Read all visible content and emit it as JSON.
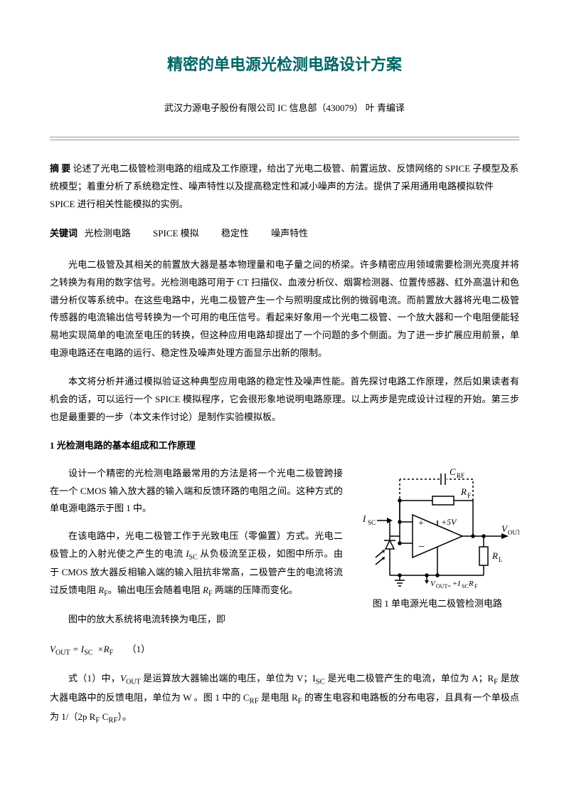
{
  "title": "精密的单电源光检测电路设计方案",
  "author": "武汉力源电子股份有限公司 IC 信息部（430079）  叶 青编译",
  "abstract_label": "摘 要",
  "abstract_text": "论述了光电二极管检测电路的组成及工作原理，给出了光电二极管、前置运放、反馈网络的 SPICE 子模型及系统模型；着重分析了系统稳定性、噪声特性以及提高稳定性和减小噪声的方法。提供了采用通用电路模拟软件 SPICE 进行相关性能模拟的实例。",
  "keywords_label": "关键词",
  "keywords": [
    "光检测电路",
    "SPICE 模拟",
    "稳定性",
    "噪声特性"
  ],
  "para1": "光电二极管及其相关的前置放大器是基本物理量和电子量之间的桥梁。许多精密应用领域需要检测光亮度并将之转换为有用的数字信号。光检测电路可用于 CT 扫描仪、血液分析仪、烟雾检测器、位置传感器、红外高温计和色谱分析仪等系统中。在这些电路中，光电二极管产生一个与照明度成比例的微弱电流。而前置放大器将光电二极管传感器的电流输出信号转换为一个可用的电压信号。看起来好象用一个光电二极管、一个放大器和一个电阻便能轻易地实现简单的电流至电压的转换，但这种应用电路却提出了一个问题的多个侧面。为了进一步扩展应用前景，单电源电路还在电路的运行、稳定性及噪声处理方面显示出新的限制。",
  "para2": "本文将分析并通过模拟验证这种典型应用电路的稳定性及噪声性能。首先探讨电路工作原理，然后如果读者有机会的话，可以运行一个 SPICE 模拟程序，它会很形象地说明电路原理。以上两步是完成设计过程的开始。第三步也是最重要的一步（本文未作讨论）是制作实验模拟板。",
  "section1_heading": "1 光检测电路的基本组成和工作原理",
  "para3": "设计一个精密的光检测电路最常用的方法是将一个光电二极管跨接在一个 CMOS 输入放大器的输入端和反馈环路的电阻之间。这种方式的单电源电路示于图 1 中。",
  "para4_parts": [
    "在该电路中，光电二极管工作于光致电压（零偏置）方式。光电二极管上的入射光使之产生的电流 ",
    " 从负极流至正极，如图中所示。由于 CMOS 放大器反相输入端的输入阻抗非常高，二极管产生的电流将流过反馈电阻 ",
    "。输出电压会随着电阻 ",
    " 两端的压降而变化。"
  ],
  "para5": "图中的放大系统将电流转换为电压，即",
  "formula_text": "V<sub>OUT</sub> = I<sub>SC</sub> × R<sub>F</sub>      （1）",
  "para6_prefix": "式（1）中，",
  "para6_body": " 是运算放大器输出端的电压，单位为 V；I<sub>SC</sub> 是光电二极管产生的电流，单位为 A；R<sub>F</sub> 是放大器电路中的反馈电阻，单位为 W 。图 1 中的 C<sub>RF</sub> 是电阻 R<sub>F</sub> 的寄生电容和电路板的分布电容，且具有一个单极点为 1/（2p R<sub>F</sub> C<sub>RF</sub>）。",
  "fig1_caption": "图 1 单电源光电二极管检测电路",
  "circuit": {
    "type": "diagram",
    "labels": {
      "crf": "C",
      "crf_sub": "RF",
      "rf": "R",
      "rf_sub": "F",
      "isc": "I",
      "isc_sub": "SC",
      "v5": "+5V",
      "vout": "V",
      "vout_sub": "OUT",
      "rl": "R",
      "rl_sub": "L",
      "bottom": "V",
      "bottom_sub": "OUT=",
      "bottom2": "+I",
      "bottom2_sub": "SC",
      "bottom3": "R",
      "bottom3_sub": "F"
    },
    "stroke": "#000000",
    "stroke_width": 1.5,
    "font_size_label": 13,
    "font_size_sub": 9
  }
}
